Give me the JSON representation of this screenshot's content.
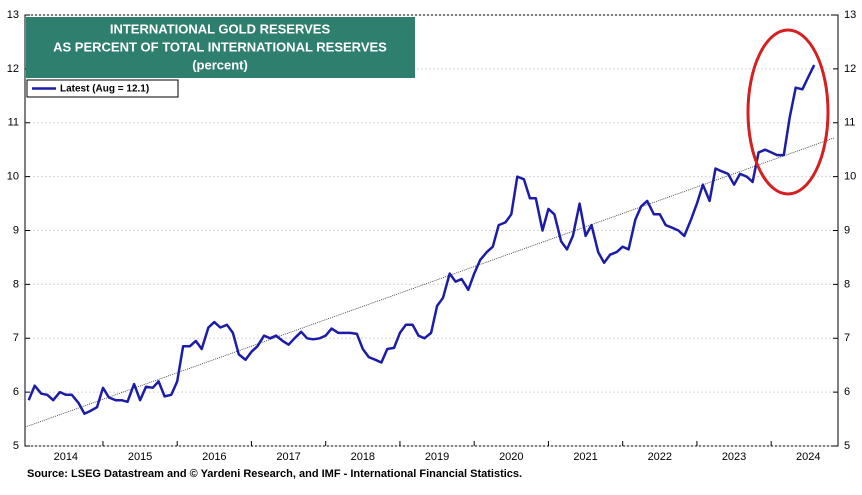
{
  "chart_data": {
    "type": "line",
    "title": [
      "INTERNATIONAL GOLD RESERVES",
      "AS PERCENT OF TOTAL INTERNATIONAL RESERVES",
      "(percent)"
    ],
    "source": "Source: LSEG Datastream and © Yardeni Research, and IMF - International Financial Statistics.",
    "x": [
      2014.0,
      2014.08,
      2014.17,
      2014.25,
      2014.33,
      2014.42,
      2014.5,
      2014.58,
      2014.67,
      2014.75,
      2014.83,
      2014.92,
      2015.0,
      2015.08,
      2015.17,
      2015.25,
      2015.33,
      2015.42,
      2015.5,
      2015.58,
      2015.67,
      2015.75,
      2015.83,
      2015.92,
      2016.0,
      2016.08,
      2016.17,
      2016.25,
      2016.33,
      2016.42,
      2016.5,
      2016.58,
      2016.67,
      2016.75,
      2016.83,
      2016.92,
      2017.0,
      2017.08,
      2017.17,
      2017.25,
      2017.33,
      2017.42,
      2017.5,
      2017.58,
      2017.67,
      2017.75,
      2017.83,
      2017.92,
      2018.0,
      2018.08,
      2018.17,
      2018.25,
      2018.33,
      2018.42,
      2018.5,
      2018.58,
      2018.67,
      2018.75,
      2018.83,
      2018.92,
      2019.0,
      2019.08,
      2019.17,
      2019.25,
      2019.33,
      2019.42,
      2019.5,
      2019.58,
      2019.67,
      2019.75,
      2019.83,
      2019.92,
      2020.0,
      2020.08,
      2020.17,
      2020.25,
      2020.33,
      2020.42,
      2020.5,
      2020.58,
      2020.67,
      2020.75,
      2020.83,
      2020.92,
      2021.0,
      2021.08,
      2021.17,
      2021.25,
      2021.33,
      2021.42,
      2021.5,
      2021.58,
      2021.67,
      2021.75,
      2021.83,
      2021.92,
      2022.0,
      2022.08,
      2022.17,
      2022.25,
      2022.33,
      2022.42,
      2022.5,
      2022.58,
      2022.67,
      2022.75,
      2022.83,
      2022.92,
      2023.0,
      2023.08,
      2023.17,
      2023.25,
      2023.33,
      2023.42,
      2023.5,
      2023.58,
      2023.67,
      2023.75,
      2023.83,
      2023.92,
      2024.0,
      2024.08,
      2024.17,
      2024.25,
      2024.33,
      2024.42,
      2024.5,
      2024.58
    ],
    "series": [
      {
        "name": "Latest (Aug = 12.1)",
        "color": "#1c1ca8",
        "values": [
          5.85,
          6.12,
          5.97,
          5.95,
          5.85,
          6.0,
          5.95,
          5.95,
          5.8,
          5.6,
          5.65,
          5.72,
          6.08,
          5.9,
          5.85,
          5.85,
          5.82,
          6.15,
          5.85,
          6.1,
          6.08,
          6.2,
          5.92,
          5.95,
          6.2,
          6.85,
          6.85,
          6.95,
          6.8,
          7.2,
          7.3,
          7.2,
          7.25,
          7.1,
          6.7,
          6.6,
          6.75,
          6.85,
          7.05,
          7.0,
          7.05,
          6.95,
          6.88,
          7.0,
          7.12,
          7.0,
          6.98,
          7.0,
          7.05,
          7.18,
          7.1,
          7.1,
          7.1,
          7.08,
          6.8,
          6.65,
          6.6,
          6.55,
          6.8,
          6.82,
          7.1,
          7.25,
          7.25,
          7.05,
          7.0,
          7.1,
          7.6,
          7.75,
          8.2,
          8.05,
          8.1,
          7.9,
          8.2,
          8.45,
          8.6,
          8.7,
          9.1,
          9.15,
          9.3,
          10.0,
          9.95,
          9.6,
          9.6,
          9.0,
          9.4,
          9.3,
          8.8,
          8.65,
          8.9,
          9.5,
          8.9,
          9.1,
          8.6,
          8.4,
          8.55,
          8.6,
          8.7,
          8.65,
          9.2,
          9.45,
          9.55,
          9.3,
          9.3,
          9.1,
          9.05,
          9.0,
          8.9,
          9.2,
          9.5,
          9.85,
          9.55,
          10.15,
          10.1,
          10.05,
          9.85,
          10.05,
          10.0,
          9.9,
          10.45,
          10.5,
          10.45,
          10.4,
          10.4,
          11.1,
          11.65,
          11.62,
          11.85,
          12.07
        ]
      }
    ],
    "trendline": {
      "x": [
        2013.95,
        2024.85
      ],
      "values": [
        5.35,
        10.72
      ],
      "color": "#333333"
    },
    "xlim": [
      2013.95,
      2024.9
    ],
    "xticks": [
      {
        "value": 2014.5,
        "label": "2014"
      },
      {
        "value": 2015.5,
        "label": "2015"
      },
      {
        "value": 2016.5,
        "label": "2016"
      },
      {
        "value": 2017.5,
        "label": "2017"
      },
      {
        "value": 2018.5,
        "label": "2018"
      },
      {
        "value": 2019.5,
        "label": "2019"
      },
      {
        "value": 2020.5,
        "label": "2020"
      },
      {
        "value": 2021.5,
        "label": "2021"
      },
      {
        "value": 2022.5,
        "label": "2022"
      },
      {
        "value": 2023.5,
        "label": "2023"
      },
      {
        "value": 2024.5,
        "label": "2024"
      }
    ],
    "ylim": [
      5,
      13
    ],
    "yticks": [
      5,
      6,
      7,
      8,
      9,
      10,
      11,
      12,
      13
    ],
    "y2lim": [
      5,
      13
    ],
    "y2ticks": [
      5,
      6,
      7,
      8,
      9,
      10,
      11,
      12,
      13
    ],
    "grid": true,
    "legend": "upper left"
  }
}
